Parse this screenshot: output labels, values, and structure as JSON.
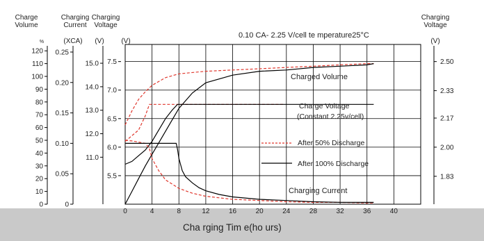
{
  "colors": {
    "background": "#ffffff",
    "bottom_band": "#c9c9c9",
    "grid": "#000000",
    "dashed_series": "#e0362c",
    "solid_series": "#000000"
  },
  "chart_data": {
    "type": "line",
    "condition_text": "0.10 CA- 2.25 V/cell te mperature25°C",
    "xlabel": "Cha rging Tim e(ho urs)",
    "x_ticks": [
      "0",
      "4",
      "8",
      "12",
      "16",
      "20",
      "24",
      "28",
      "32",
      "36",
      "40"
    ],
    "xlim": [
      0,
      44
    ],
    "plot_voltage_ylim": [
      5.0,
      7.8
    ],
    "left_axes": [
      {
        "header": [
          "Charge",
          "Volume"
        ],
        "unit": "%",
        "range": [
          0,
          125
        ],
        "ticks": [
          "0",
          "10",
          "20",
          "30",
          "40",
          "50",
          "60",
          "70",
          "80",
          "90",
          "100",
          "110",
          "120"
        ]
      },
      {
        "header": [
          "Charging",
          "Current"
        ],
        "unit": "(XCA)",
        "range": [
          0,
          0.2625
        ],
        "ticks": [
          "0",
          "0.05",
          "0.10",
          "0.15",
          "0.20",
          "0.25"
        ]
      },
      {
        "header": [
          "Charging",
          "Voltage"
        ],
        "unit": "(V)",
        "range": [
          9.0,
          15.8
        ],
        "ticks": [
          "11.0",
          "12.0",
          "13.0",
          "14.0",
          "15.0"
        ]
      },
      {
        "header": [],
        "unit": "(V)",
        "range": [
          5.0,
          7.8
        ],
        "ticks": [
          "5.5",
          "6.0",
          "6.5",
          "7.0",
          "7.5"
        ]
      }
    ],
    "right_axis": {
      "header": [
        "Charging",
        "Voltage"
      ],
      "unit": "(V)",
      "range": [
        1.667,
        2.6
      ],
      "ticks": [
        "1.83",
        "2.00",
        "2.17",
        "2.33",
        "2.50"
      ]
    },
    "annotations": {
      "charged_volume": "Charged Volume",
      "charge_voltage": [
        "Charge Voltage",
        "(Constant 2.25v/cell)"
      ],
      "charging_current": "Charging Current"
    },
    "legend": [
      {
        "name": "After 50% Discharge",
        "style": "dashed"
      },
      {
        "name": "After 100% Discharge",
        "style": "solid"
      }
    ],
    "series": [
      {
        "group": "After 50% Discharge",
        "quantity": "charged volume",
        "axis": "volume",
        "x": [
          0,
          1,
          2,
          3,
          4,
          6,
          8,
          12,
          16,
          20,
          24,
          28,
          32,
          36,
          37
        ],
        "y": [
          62,
          73,
          82,
          88,
          93,
          99,
          102,
          104,
          105,
          106,
          107,
          108,
          109,
          110,
          110
        ]
      },
      {
        "group": "After 100% Discharge",
        "quantity": "charged volume",
        "axis": "volume",
        "x": [
          0,
          1,
          2,
          3,
          4,
          5,
          6,
          7,
          8,
          10,
          12,
          16,
          20,
          24,
          28,
          32,
          36,
          37
        ],
        "y": [
          0,
          10,
          20,
          30,
          39,
          48,
          57,
          66,
          75,
          87,
          95,
          101,
          104,
          105,
          107,
          108,
          109,
          110
        ]
      },
      {
        "group": "After 50% Discharge",
        "quantity": "charge voltage",
        "axis": "voltage",
        "x": [
          0,
          1,
          2,
          3,
          3.6,
          4,
          8,
          12,
          16,
          20,
          23.5
        ],
        "y": [
          6.1,
          6.2,
          6.3,
          6.55,
          6.75,
          6.75,
          6.75,
          6.75,
          6.75,
          6.75,
          6.75
        ]
      },
      {
        "group": "After 100% Discharge",
        "quantity": "charge voltage",
        "axis": "voltage",
        "x": [
          0,
          1,
          2,
          3,
          4,
          5,
          6,
          7,
          7.8,
          12,
          16,
          20,
          24,
          28,
          32,
          36,
          37
        ],
        "y": [
          5.7,
          5.75,
          5.85,
          5.95,
          6.1,
          6.3,
          6.5,
          6.65,
          6.75,
          6.75,
          6.75,
          6.75,
          6.75,
          6.75,
          6.75,
          6.75,
          6.75
        ]
      },
      {
        "group": "After 50% Discharge",
        "quantity": "charging current",
        "axis": "current",
        "x": [
          0,
          1,
          2,
          3,
          3.6,
          4,
          5,
          6,
          8,
          10,
          12,
          16,
          20,
          24,
          28,
          32,
          36,
          37
        ],
        "y": [
          0.105,
          0.104,
          0.102,
          0.1,
          0.092,
          0.075,
          0.055,
          0.04,
          0.026,
          0.018,
          0.013,
          0.008,
          0.006,
          0.004,
          0.003,
          0.003,
          0.002,
          0.002
        ]
      },
      {
        "group": "After 100% Discharge",
        "quantity": "charging current",
        "axis": "current",
        "x": [
          0,
          2,
          4,
          6,
          7.6,
          7.8,
          8,
          8.5,
          9,
          10,
          11,
          12,
          14,
          16,
          20,
          24,
          28,
          32,
          36,
          37
        ],
        "y": [
          0.1,
          0.1,
          0.1,
          0.1,
          0.1,
          0.09,
          0.075,
          0.055,
          0.045,
          0.035,
          0.027,
          0.022,
          0.016,
          0.012,
          0.008,
          0.006,
          0.004,
          0.003,
          0.003,
          0.003
        ]
      }
    ]
  }
}
